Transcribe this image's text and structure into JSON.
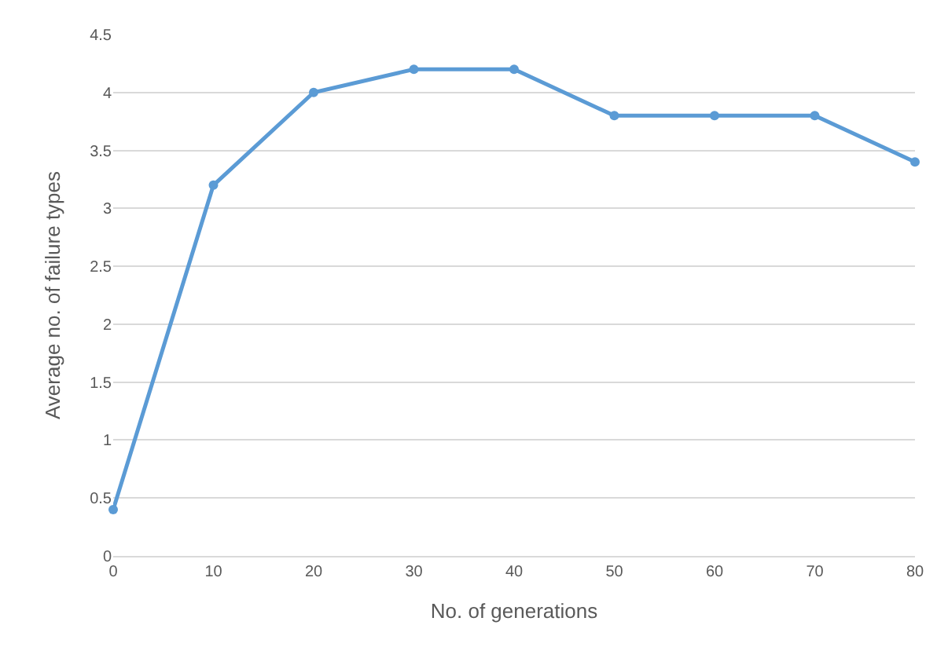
{
  "chart_data": {
    "type": "line",
    "xlabel": "No. of generations",
    "ylabel": "Average no. of failure types",
    "x": [
      0,
      10,
      20,
      30,
      40,
      50,
      60,
      70,
      80
    ],
    "series": [
      {
        "color": "#5b9bd5",
        "values": [
          0.4,
          3.2,
          4.0,
          4.2,
          4.2,
          3.8,
          3.8,
          3.8,
          3.4
        ]
      }
    ],
    "xlim": [
      0,
      80
    ],
    "xticks": [
      0,
      10,
      20,
      30,
      40,
      50,
      60,
      70,
      80
    ],
    "ylim": [
      0,
      4.5
    ],
    "yticks": [
      0,
      0.5,
      1,
      1.5,
      2,
      2.5,
      3,
      3.5,
      4,
      4.5
    ],
    "grid": "y",
    "marker": "circle",
    "line_style": "solid"
  }
}
